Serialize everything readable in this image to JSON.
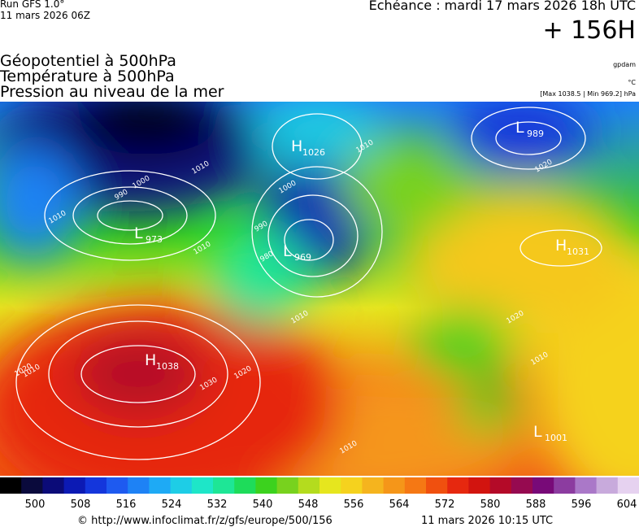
{
  "header": {
    "run": "Run GFS 1.0°",
    "date": "11 mars 2026 06Z",
    "echeance": "Echéance : mardi 17 mars 2026 18h UTC",
    "offset": "+ 156H"
  },
  "layers": [
    "Géopotentiel à 500hPa",
    "Température à 500hPa",
    "Pression au niveau de la mer"
  ],
  "units": [
    "gpdam",
    "°C",
    "[Max 1038.5 | Min 969.2] hPa"
  ],
  "centers": [
    {
      "letter": "H",
      "value": "1026"
    },
    {
      "letter": "L",
      "value": "989"
    },
    {
      "letter": "L",
      "value": "973"
    },
    {
      "letter": "L",
      "value": "969"
    },
    {
      "letter": "H",
      "value": "1031"
    },
    {
      "letter": "H",
      "value": "1038"
    },
    {
      "letter": "L",
      "value": "1001"
    }
  ],
  "isobar_labels": [
    "1010",
    "1000",
    "990",
    "1010",
    "1010",
    "1000",
    "990",
    "980",
    "1010",
    "1020",
    "1010",
    "1010",
    "1020",
    "1030",
    "1020",
    "1010",
    "1020",
    "1010"
  ],
  "colorbar": {
    "colors": [
      "#000000",
      "#0a0a3c",
      "#0b0b78",
      "#0c1ab4",
      "#1436dc",
      "#1e5af0",
      "#1e82f5",
      "#1eaaf5",
      "#1ecde6",
      "#1ee6c8",
      "#1ee696",
      "#1edc5a",
      "#3cd21e",
      "#78d21e",
      "#b4dc1e",
      "#e6e61e",
      "#f5d21e",
      "#f5b41e",
      "#f59619",
      "#f57814",
      "#f0500f",
      "#e6280f",
      "#d2140f",
      "#b40a28",
      "#960a50",
      "#780a78",
      "#8c3ca0",
      "#aa78c8",
      "#c8aadc",
      "#e6d2f0"
    ],
    "labels": [
      500,
      508,
      516,
      524,
      532,
      540,
      548,
      556,
      564,
      572,
      580,
      588,
      596,
      604
    ]
  },
  "footer": {
    "url": "© http://www.infoclimat.fr/z/gfs/europe/500/156",
    "generated": "11 mars 2026 10:15 UTC"
  }
}
